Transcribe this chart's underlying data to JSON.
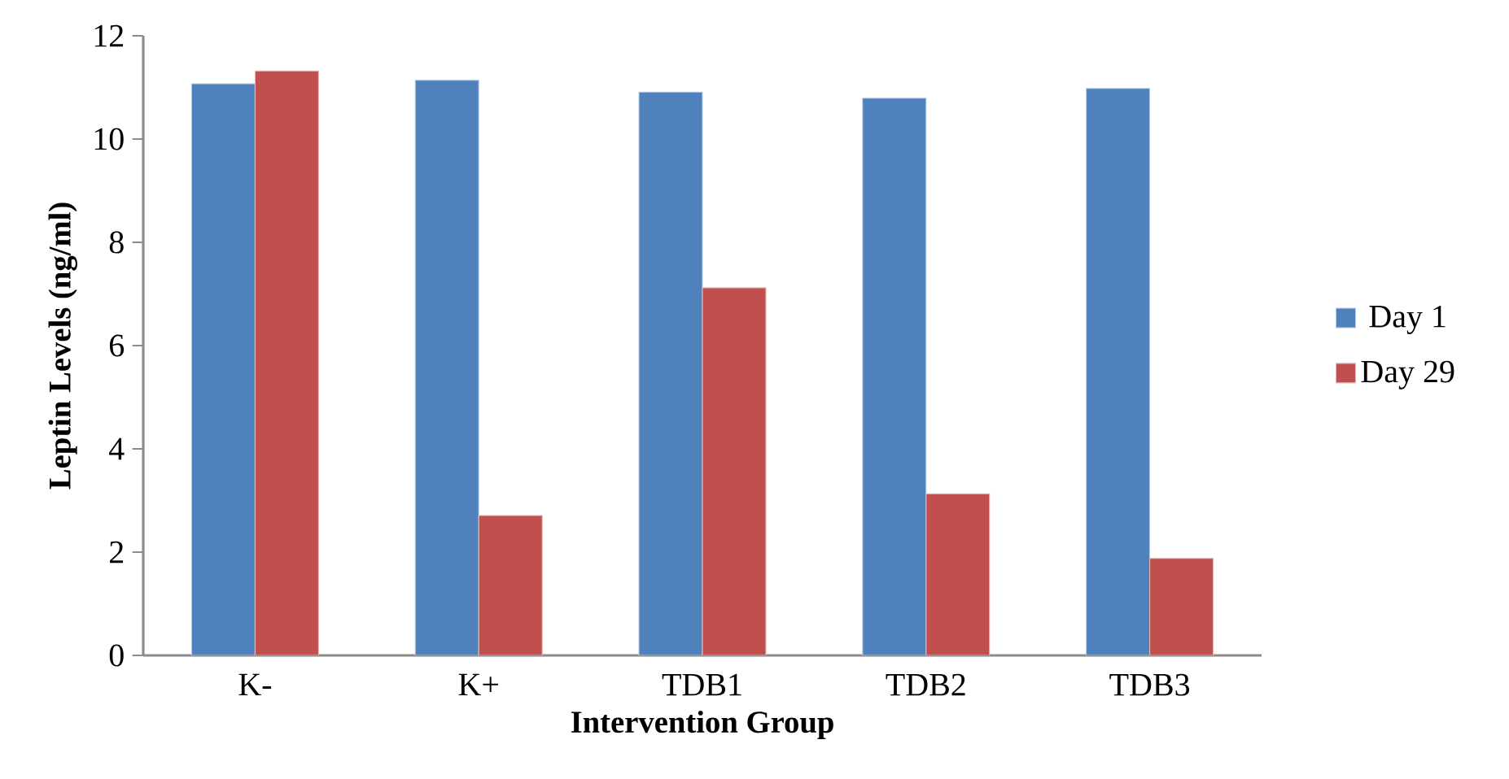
{
  "chart_data": {
    "type": "bar",
    "xlabel": "Intervention Group",
    "ylabel": "Leptin Levels (ng/ml)",
    "categories": [
      "K-",
      "K+",
      "TDB1",
      "TDB2",
      "TDB3"
    ],
    "series": [
      {
        "name": "Day 1",
        "color": "#4f81bd",
        "values": [
          11.07,
          11.14,
          10.91,
          10.79,
          10.98
        ]
      },
      {
        "name": "Day 29",
        "color": "#c0504d",
        "values": [
          11.32,
          2.71,
          7.12,
          3.13,
          1.88
        ]
      }
    ],
    "ylim": [
      0,
      12
    ],
    "yticks": [
      0,
      2,
      4,
      6,
      8,
      10,
      12
    ],
    "grid": false,
    "legend": "right"
  }
}
